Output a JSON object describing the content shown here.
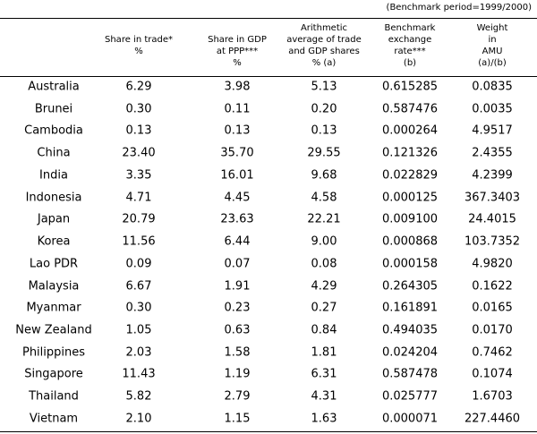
{
  "note": "(Benchmark period=1999/2000)",
  "table": {
    "header": [
      [
        "Share in trade*",
        "%"
      ],
      [
        "Share in GDP",
        "at PPP***",
        "%"
      ],
      [
        "Arithmetic",
        "average of trade",
        "and GDP shares",
        "% (a)"
      ],
      [
        "Benchmark",
        "exchange",
        "rate***",
        "(b)"
      ],
      [
        "Weight",
        "in",
        "AMU",
        "(a)/(b)"
      ]
    ],
    "rows": [
      [
        "Australia",
        "6.29",
        "3.98",
        "5.13",
        "0.615285",
        "0.0835"
      ],
      [
        "Brunei",
        "0.30",
        "0.11",
        "0.20",
        "0.587476",
        "0.0035"
      ],
      [
        "Cambodia",
        "0.13",
        "0.13",
        "0.13",
        "0.000264",
        "4.9517"
      ],
      [
        "China",
        "23.40",
        "35.70",
        "29.55",
        "0.121326",
        "2.4355"
      ],
      [
        "India",
        "3.35",
        "16.01",
        "9.68",
        "0.022829",
        "4.2399"
      ],
      [
        "Indonesia",
        "4.71",
        "4.45",
        "4.58",
        "0.000125",
        "367.3403"
      ],
      [
        "Japan",
        "20.79",
        "23.63",
        "22.21",
        "0.009100",
        "24.4015"
      ],
      [
        "Korea",
        "11.56",
        "6.44",
        "9.00",
        "0.000868",
        "103.7352"
      ],
      [
        "Lao PDR",
        "0.09",
        "0.07",
        "0.08",
        "0.000158",
        "4.9820"
      ],
      [
        "Malaysia",
        "6.67",
        "1.91",
        "4.29",
        "0.264305",
        "0.1622"
      ],
      [
        "Myanmar",
        "0.30",
        "0.23",
        "0.27",
        "0.161891",
        "0.0165"
      ],
      [
        "New Zealand",
        "1.05",
        "0.63",
        "0.84",
        "0.494035",
        "0.0170"
      ],
      [
        "Philippines",
        "2.03",
        "1.58",
        "1.81",
        "0.024204",
        "0.7462"
      ],
      [
        "Singapore",
        "11.43",
        "1.19",
        "6.31",
        "0.587478",
        "0.1074"
      ],
      [
        "Thailand",
        "5.82",
        "2.79",
        "4.31",
        "0.025777",
        "1.6703"
      ],
      [
        "Vietnam",
        "2.10",
        "1.15",
        "1.63",
        "0.000071",
        "227.4460"
      ]
    ]
  }
}
